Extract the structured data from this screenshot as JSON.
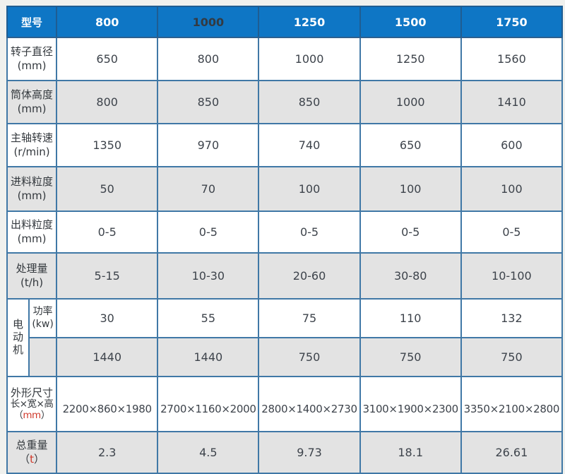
{
  "colors": {
    "header_bg": "#0e76c5",
    "header_text": "#ffffff",
    "header_alt_text": "#333a42",
    "border": "#4078a6",
    "row_alt_bg": "#e3e3e3",
    "row_bg": "#ffffff",
    "page_bg": "#f0f1ee",
    "text": "#3d434b",
    "unit_red": "#d0392b"
  },
  "header": {
    "label": "型号",
    "models": [
      "800",
      "1000",
      "1250",
      "1500",
      "1750"
    ]
  },
  "rows": [
    {
      "label": "转子直径",
      "unit": "(mm)",
      "values": [
        "650",
        "800",
        "1000",
        "1250",
        "1560"
      ]
    },
    {
      "label": "筒体高度",
      "unit": "(mm)",
      "values": [
        "800",
        "850",
        "850",
        "1000",
        "1410"
      ]
    },
    {
      "label": "主轴转速",
      "unit": "(r/min)",
      "values": [
        "1350",
        "970",
        "740",
        "650",
        "600"
      ]
    },
    {
      "label": "进料粒度",
      "unit": "(mm)",
      "values": [
        "50",
        "70",
        "100",
        "100",
        "100"
      ]
    },
    {
      "label": "出料粒度",
      "unit": "(mm)",
      "values": [
        "0-5",
        "0-5",
        "0-5",
        "0-5",
        "0-5"
      ]
    },
    {
      "label": "处理量",
      "unit": "(t/h)",
      "values": [
        "5-15",
        "10-30",
        "20-60",
        "30-80",
        "10-100"
      ]
    }
  ],
  "motor": {
    "group_label": "电动机",
    "power": {
      "label": "功率",
      "unit": "(kw)",
      "values": [
        "30",
        "55",
        "75",
        "110",
        "132"
      ]
    },
    "speed": {
      "values": [
        "1440",
        "1440",
        "750",
        "750",
        "750"
      ]
    }
  },
  "dimensions": {
    "label_line1": "外形尺寸",
    "label_line2": "长×宽×高",
    "unit_open": "（",
    "unit": "mm",
    "unit_close": "）",
    "values": [
      "2200×860×1980",
      "2700×1160×2000",
      "2800×1400×2730",
      "3100×1900×2300",
      "3350×2100×2800"
    ]
  },
  "weight": {
    "label": "总重量",
    "unit_open": "（",
    "unit": "t",
    "unit_close": "）",
    "values": [
      "2.3",
      "4.5",
      "9.73",
      "18.1",
      "26.61"
    ]
  }
}
